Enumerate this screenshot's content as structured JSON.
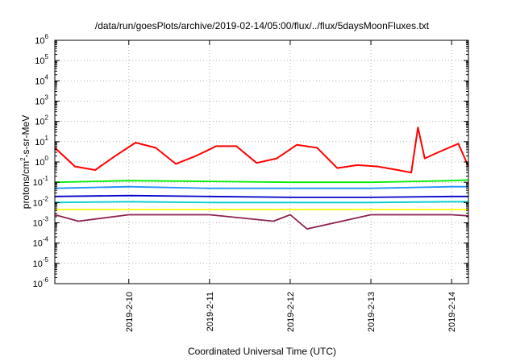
{
  "chart_data": {
    "type": "line",
    "title": "/data/run/goesPlots/archive/2019-02-14/05:00/flux/../flux/5daysMoonFluxes.txt",
    "xlabel": "Coordinated Universal Time (UTC)",
    "ylabel_parts": [
      "protons/cm",
      "2",
      "-s-sr-MeV"
    ],
    "y_scale": "log",
    "ylim": [
      1e-06,
      1000000.0
    ],
    "y_ticks": [
      {
        "base": "10",
        "exp": "-6",
        "value": 1e-06
      },
      {
        "base": "10",
        "exp": "-5",
        "value": 1e-05
      },
      {
        "base": "10",
        "exp": "-4",
        "value": 0.0001
      },
      {
        "base": "10",
        "exp": "-3",
        "value": 0.001
      },
      {
        "base": "10",
        "exp": "-2",
        "value": 0.01
      },
      {
        "base": "10",
        "exp": "-1",
        "value": 0.1
      },
      {
        "base": "10",
        "exp": "0",
        "value": 1
      },
      {
        "base": "10",
        "exp": "1",
        "value": 10
      },
      {
        "base": "10",
        "exp": "2",
        "value": 100
      },
      {
        "base": "10",
        "exp": "3",
        "value": 1000
      },
      {
        "base": "10",
        "exp": "4",
        "value": 10000
      },
      {
        "base": "10",
        "exp": "5",
        "value": 100000
      },
      {
        "base": "10",
        "exp": "6",
        "value": 1000000
      }
    ],
    "xlim": [
      "2019-02-09 02:00",
      "2019-02-14 05:00"
    ],
    "x_ticks": [
      "2019-2-10",
      "2019-2-11",
      "2019-2-12",
      "2019-2-13",
      "2019-2-14"
    ],
    "x_tick_times": [
      "2019-02-10 00:00",
      "2019-02-11 00:00",
      "2019-02-12 00:00",
      "2019-02-13 00:00",
      "2019-02-14 00:00"
    ],
    "grid": true,
    "legend": "none",
    "series": [
      {
        "color": "#ff0000",
        "x": [
          "2019-02-09 02:00",
          "2019-02-09 08:00",
          "2019-02-09 14:00",
          "2019-02-09 20:00",
          "2019-02-10 02:00",
          "2019-02-10 08:00",
          "2019-02-10 14:00",
          "2019-02-10 20:00",
          "2019-02-11 02:00",
          "2019-02-11 08:00",
          "2019-02-11 14:00",
          "2019-02-11 20:00",
          "2019-02-12 02:00",
          "2019-02-12 08:00",
          "2019-02-12 14:00",
          "2019-02-12 20:00",
          "2019-02-13 02:00",
          "2019-02-13 08:00",
          "2019-02-13 12:00",
          "2019-02-13 14:00",
          "2019-02-13 16:00",
          "2019-02-13 20:00",
          "2019-02-14 02:00",
          "2019-02-14 05:00"
        ],
        "values": [
          5,
          0.6,
          0.4,
          2,
          9,
          5,
          0.8,
          2,
          6,
          6,
          0.9,
          1.5,
          7,
          5,
          0.5,
          0.7,
          0.6,
          0.4,
          0.3,
          50,
          1.5,
          3,
          8,
          0.6
        ]
      },
      {
        "color": "#00ee00",
        "x": [
          "2019-02-09 02:00",
          "2019-02-10 00:00",
          "2019-02-11 00:00",
          "2019-02-12 00:00",
          "2019-02-13 00:00",
          "2019-02-14 00:00",
          "2019-02-14 05:00"
        ],
        "values": [
          0.1,
          0.12,
          0.11,
          0.1,
          0.1,
          0.12,
          0.13
        ]
      },
      {
        "color": "#1e90ff",
        "x": [
          "2019-02-09 02:00",
          "2019-02-10 00:00",
          "2019-02-11 00:00",
          "2019-02-12 00:00",
          "2019-02-13 00:00",
          "2019-02-14 00:00",
          "2019-02-14 05:00"
        ],
        "values": [
          0.05,
          0.06,
          0.05,
          0.05,
          0.05,
          0.06,
          0.06
        ]
      },
      {
        "color": "#0000cd",
        "x": [
          "2019-02-09 02:00",
          "2019-02-10 00:00",
          "2019-02-11 00:00",
          "2019-02-12 00:00",
          "2019-02-13 00:00",
          "2019-02-14 00:00",
          "2019-02-14 05:00"
        ],
        "values": [
          0.02,
          0.022,
          0.02,
          0.018,
          0.018,
          0.02,
          0.02
        ]
      },
      {
        "color": "#00ced1",
        "x": [
          "2019-02-09 02:00",
          "2019-02-10 00:00",
          "2019-02-11 00:00",
          "2019-02-12 00:00",
          "2019-02-13 00:00",
          "2019-02-14 00:00",
          "2019-02-14 05:00"
        ],
        "values": [
          0.01,
          0.011,
          0.01,
          0.01,
          0.01,
          0.011,
          0.011
        ]
      },
      {
        "color": "#ffff00",
        "x": [
          "2019-02-09 02:00",
          "2019-02-10 00:00",
          "2019-02-11 00:00",
          "2019-02-12 00:00",
          "2019-02-13 00:00",
          "2019-02-14 00:00",
          "2019-02-14 05:00"
        ],
        "values": [
          0.0045,
          0.0045,
          0.0045,
          0.0045,
          0.0045,
          0.0045,
          0.0045
        ]
      },
      {
        "color": "#8b2252",
        "x": [
          "2019-02-09 02:00",
          "2019-02-09 09:00",
          "2019-02-10 00:00",
          "2019-02-11 00:00",
          "2019-02-11 19:00",
          "2019-02-12 00:00",
          "2019-02-12 05:00",
          "2019-02-13 00:00",
          "2019-02-14 00:00",
          "2019-02-14 05:00"
        ],
        "values": [
          0.0025,
          0.0012,
          0.0025,
          0.0025,
          0.0012,
          0.0025,
          0.0005,
          0.0025,
          0.0025,
          0.0022
        ]
      }
    ]
  }
}
